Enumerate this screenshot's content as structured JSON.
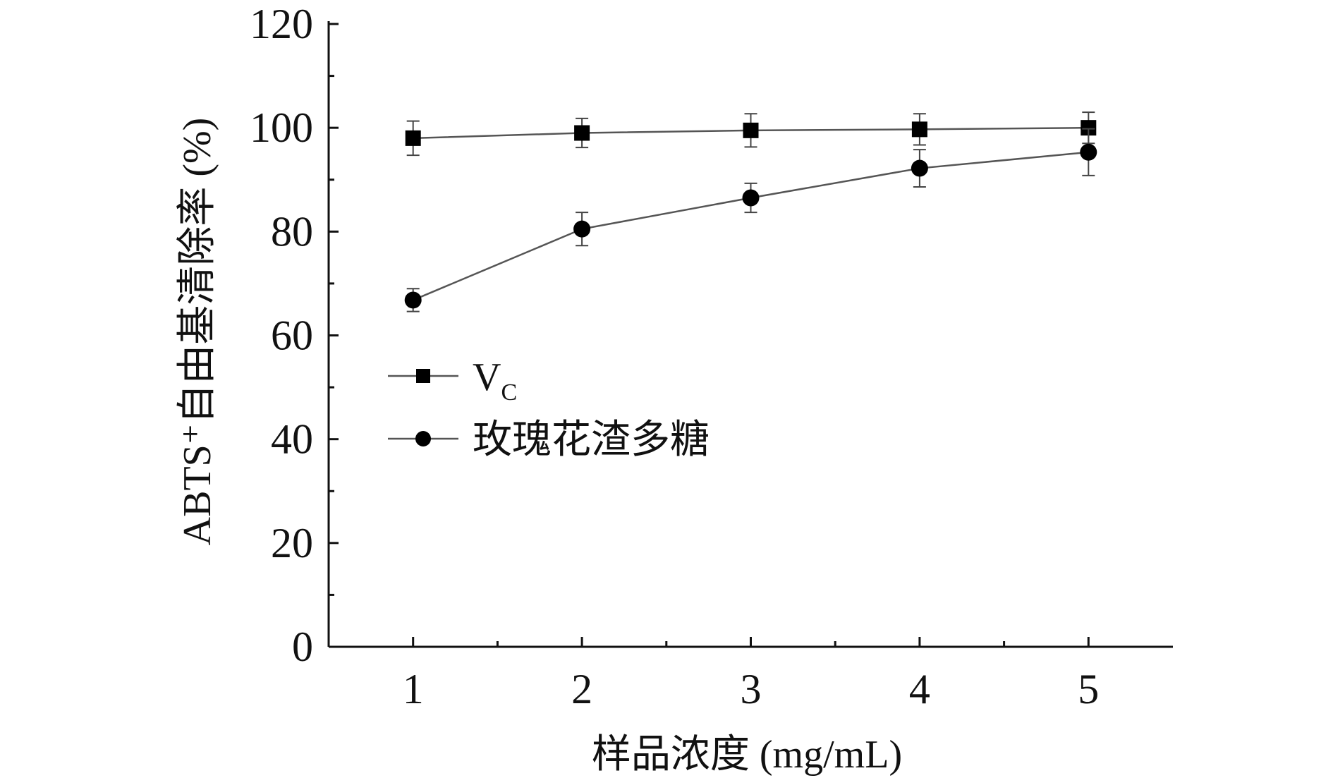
{
  "chart_data": {
    "type": "line",
    "x": [
      1,
      2,
      3,
      4,
      5
    ],
    "xlim": [
      0.5,
      5.5
    ],
    "ylim": [
      0,
      120
    ],
    "x_ticks": [
      "1",
      "2",
      "3",
      "4",
      "5"
    ],
    "y_ticks": [
      "0",
      "20",
      "40",
      "60",
      "80",
      "100",
      "120"
    ],
    "xlabel": "样品浓度 (mg/mL)",
    "ylabel": "ABTS⁺自由基清除率 (%)",
    "grid": false,
    "legend_position": "center-left",
    "series": [
      {
        "name": "VC",
        "name_main": "V",
        "name_sub": "C",
        "marker": "square",
        "color": "#000000",
        "values": [
          98.0,
          99.0,
          99.5,
          99.7,
          100.0
        ],
        "errors": [
          3.3,
          2.8,
          3.2,
          3.0,
          3.0
        ]
      },
      {
        "name": "玫瑰花渣多糖",
        "marker": "circle",
        "color": "#000000",
        "values": [
          66.8,
          80.5,
          86.5,
          92.2,
          95.3
        ],
        "errors": [
          2.2,
          3.2,
          2.8,
          3.6,
          4.5
        ]
      }
    ]
  }
}
